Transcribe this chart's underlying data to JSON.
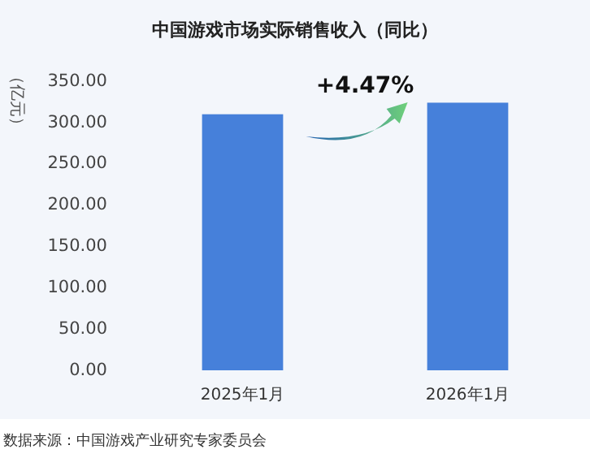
{
  "chart_data": {
    "type": "bar",
    "title": "中国游戏市场实际销售收入（同比）",
    "ylabel": "（亿元）",
    "categories": [
      "2025年1月",
      "2026年1月"
    ],
    "series": [
      {
        "color": "#4680da",
        "values": [
          310,
          324
        ]
      }
    ],
    "ylim": [
      0,
      350
    ],
    "yticks": [
      {
        "value": 0,
        "label": "0.00"
      },
      {
        "value": 50,
        "label": "50.00"
      },
      {
        "value": 100,
        "label": "100.00"
      },
      {
        "value": 150,
        "label": "150.00"
      },
      {
        "value": 200,
        "label": "200.00"
      },
      {
        "value": 250,
        "label": "250.00"
      },
      {
        "value": 300,
        "label": "300.00"
      },
      {
        "value": 350,
        "label": "350.00"
      }
    ],
    "grid": false,
    "annotations": [
      "+4.47%",
      "数据来源：中国游戏产业研究专家委员会"
    ]
  }
}
